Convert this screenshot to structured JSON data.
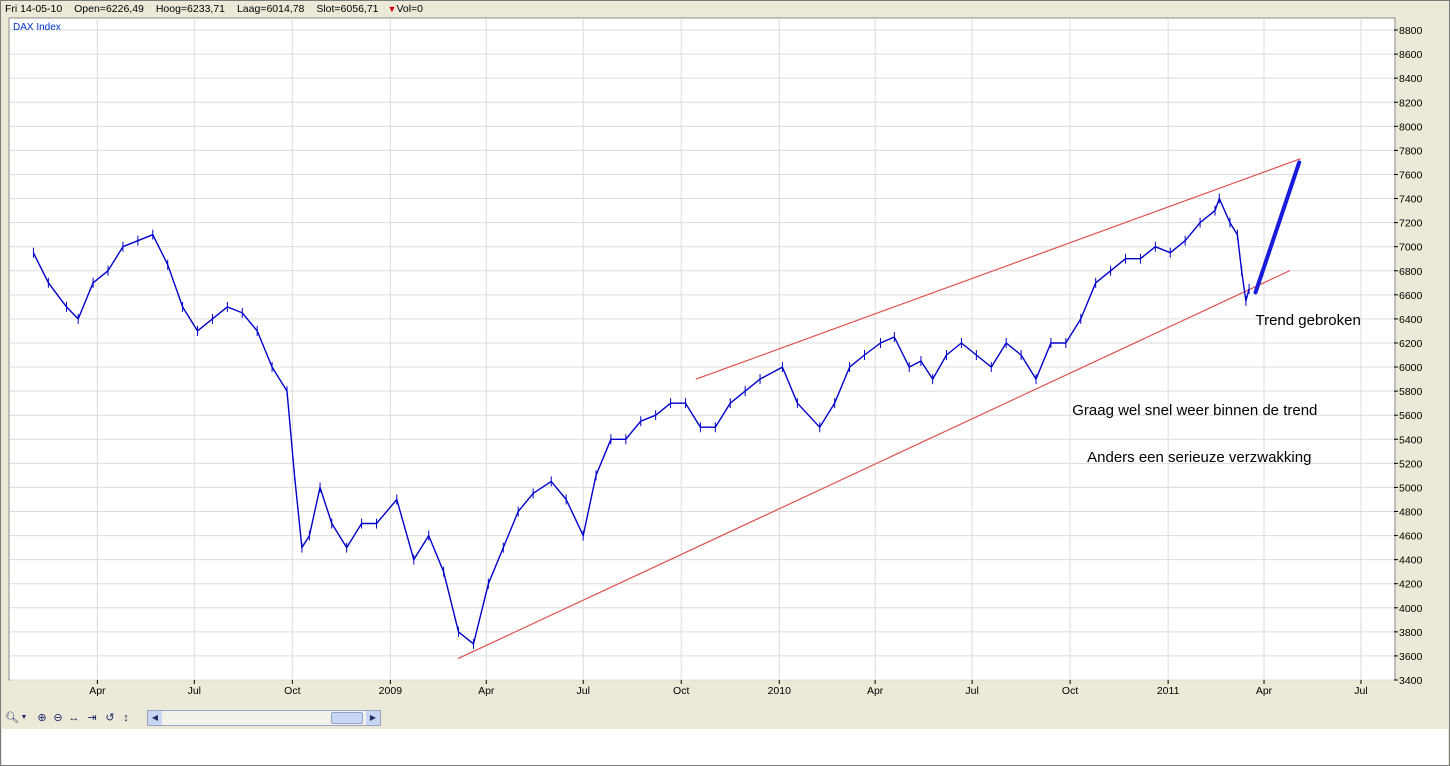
{
  "info_bar": {
    "date": "Fri 14-05-10",
    "open": "Open=6226,49",
    "high": "Hoog=6233,71",
    "low": "Laag=6014,78",
    "close": "Slot=6056,71",
    "volume": "Vol=0",
    "direction_marker": "▼"
  },
  "toolbar": {
    "zoom_icon": "magnifier-icon",
    "zoom_in_icon": "zoom-in-icon",
    "zoom_out_icon": "zoom-out-icon",
    "pan_icon": "horizontal-arrows-icon",
    "goto_end_icon": "goto-end-icon",
    "reset_icon": "undo-icon",
    "vertical_icon": "vertical-arrows-icon"
  },
  "chart_data": {
    "type": "line",
    "series_label": "DAX Index",
    "series": [
      {
        "name": "DAX Index",
        "color": "#0000cc",
        "x": [
          "2008-02-01",
          "2008-02-15",
          "2008-03-03",
          "2008-03-14",
          "2008-03-28",
          "2008-04-11",
          "2008-04-25",
          "2008-05-09",
          "2008-05-23",
          "2008-06-06",
          "2008-06-20",
          "2008-07-04",
          "2008-07-18",
          "2008-08-01",
          "2008-08-15",
          "2008-08-29",
          "2008-09-12",
          "2008-09-26",
          "2008-10-03",
          "2008-10-10",
          "2008-10-17",
          "2008-10-27",
          "2008-11-07",
          "2008-11-21",
          "2008-12-05",
          "2008-12-19",
          "2009-01-07",
          "2009-01-23",
          "2009-02-06",
          "2009-02-20",
          "2009-03-06",
          "2009-03-20",
          "2009-04-03",
          "2009-04-17",
          "2009-05-01",
          "2009-05-15",
          "2009-06-01",
          "2009-06-15",
          "2009-07-01",
          "2009-07-13",
          "2009-07-27",
          "2009-08-10",
          "2009-08-24",
          "2009-09-07",
          "2009-09-21",
          "2009-10-05",
          "2009-10-19",
          "2009-11-02",
          "2009-11-16",
          "2009-11-30",
          "2009-12-14",
          "2010-01-04",
          "2010-01-18",
          "2010-02-08",
          "2010-02-22",
          "2010-03-08",
          "2010-03-22",
          "2010-04-06",
          "2010-04-19",
          "2010-05-03",
          "2010-05-14",
          "2010-05-25",
          "2010-06-07",
          "2010-06-21",
          "2010-07-05",
          "2010-07-19",
          "2010-08-02",
          "2010-08-16",
          "2010-08-30",
          "2010-09-13",
          "2010-09-27",
          "2010-10-11",
          "2010-10-25",
          "2010-11-08",
          "2010-11-22",
          "2010-12-06",
          "2010-12-20",
          "2011-01-03",
          "2011-01-17",
          "2011-01-31",
          "2011-02-14",
          "2011-02-18",
          "2011-02-28",
          "2011-03-07",
          "2011-03-11",
          "2011-03-15",
          "2011-03-18"
        ],
        "y": [
          6950,
          6700,
          6500,
          6400,
          6700,
          6800,
          7000,
          7050,
          7100,
          6850,
          6500,
          6300,
          6400,
          6500,
          6450,
          6300,
          6000,
          5800,
          5100,
          4500,
          4600,
          5000,
          4700,
          4500,
          4700,
          4700,
          4900,
          4400,
          4600,
          4300,
          3800,
          3700,
          4200,
          4500,
          4800,
          4950,
          5050,
          4900,
          4600,
          5100,
          5400,
          5400,
          5550,
          5600,
          5700,
          5700,
          5500,
          5500,
          5700,
          5800,
          5900,
          6000,
          5700,
          5500,
          5700,
          6000,
          6100,
          6200,
          6250,
          6000,
          6050,
          5900,
          6100,
          6200,
          6100,
          6000,
          6200,
          6100,
          5900,
          6200,
          6200,
          6400,
          6700,
          6800,
          6900,
          6900,
          7000,
          6950,
          7050,
          7200,
          7300,
          7400,
          7200,
          7100,
          6800,
          6550,
          6650
        ]
      }
    ],
    "ylim": [
      3400,
      8900
    ],
    "yticks": [
      3400,
      3600,
      3800,
      4000,
      4200,
      4400,
      4600,
      4800,
      5000,
      5200,
      5400,
      5600,
      5800,
      6000,
      6200,
      6400,
      6600,
      6800,
      7000,
      7200,
      7400,
      7600,
      7800,
      8000,
      8200,
      8400,
      8600,
      8800
    ],
    "xlim": [
      "2008-01-10",
      "2011-08-01"
    ],
    "xticks": [
      {
        "date": "2008-04-01",
        "label": "Apr"
      },
      {
        "date": "2008-07-01",
        "label": "Jul"
      },
      {
        "date": "2008-10-01",
        "label": "Oct"
      },
      {
        "date": "2009-01-01",
        "label": "2009"
      },
      {
        "date": "2009-04-01",
        "label": "Apr"
      },
      {
        "date": "2009-07-01",
        "label": "Jul"
      },
      {
        "date": "2009-10-01",
        "label": "Oct"
      },
      {
        "date": "2010-01-01",
        "label": "2010"
      },
      {
        "date": "2010-04-01",
        "label": "Apr"
      },
      {
        "date": "2010-07-01",
        "label": "Jul"
      },
      {
        "date": "2010-10-01",
        "label": "Oct"
      },
      {
        "date": "2011-01-01",
        "label": "2011"
      },
      {
        "date": "2011-04-01",
        "label": "Apr"
      },
      {
        "date": "2011-07-01",
        "label": "Jul"
      }
    ],
    "grid": true,
    "trendlines": [
      {
        "name": "upper-trendline",
        "color": "#e05050",
        "from": {
          "x": "2009-10-15",
          "y": 5900
        },
        "to": {
          "x": "2011-05-05",
          "y": 7730
        }
      },
      {
        "name": "lower-trendline",
        "color": "#e05050",
        "from": {
          "x": "2009-03-06",
          "y": 3580
        },
        "to": {
          "x": "2011-04-25",
          "y": 6800
        }
      },
      {
        "name": "projection-arrow",
        "color": "#1a1adb",
        "from": {
          "x": "2011-03-24",
          "y": 6620
        },
        "to": {
          "x": "2011-05-04",
          "y": 7700
        }
      }
    ],
    "annotations": [
      {
        "text": "Trend gebroken",
        "x": "2011-03-24",
        "y": 6350
      },
      {
        "text": "Graag wel snel weer binnen de trend",
        "x": "2010-10-03",
        "y": 5600
      },
      {
        "text": "Anders een serieuze verzwakking",
        "x": "2010-10-17",
        "y": 5210
      }
    ]
  }
}
